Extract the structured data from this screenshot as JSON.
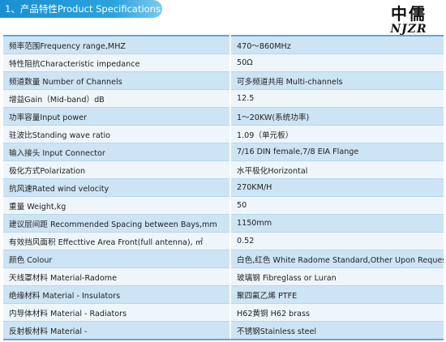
{
  "header": {
    "title": "1、产品特性Product Specifications"
  },
  "logo": {
    "cn": "中儒",
    "en": "NJZR"
  },
  "specs": [
    {
      "label": "频率范围Frequency range,MHZ",
      "value": "470～860MHz"
    },
    {
      "label": "特性阻抗Characteristic impedance",
      "value": "50Ω"
    },
    {
      "label": "频道数量 Number of Channels",
      "value": "可多频道共用 Multi-channels"
    },
    {
      "label": "增益Gain（Mid-band）dB",
      "value": "12.5"
    },
    {
      "label": "功率容量Input power",
      "value": "1～20KW(系统功率)"
    },
    {
      "label": "驻波比Standing wave ratio",
      "value": "1.09（单元板）"
    },
    {
      "label": "输入接头 Input Connector",
      "value": "7/16 DIN female,7/8 EIA Flange"
    },
    {
      "label": "极化方式Polarization",
      "value": "水平极化Horizontal"
    },
    {
      "label": "抗风速Rated wind velocity",
      "value": "270KM/H"
    },
    {
      "label": "重量 Weight,kg",
      "value": "50"
    },
    {
      "label": "建议层间距 Recommended Spacing between Bays,mm",
      "value": "1150mm"
    },
    {
      "label": "有效挡风面积 Effecttive Area Front(full antenna), ㎡",
      "value": "0.52"
    },
    {
      "label": "颜色 Colour",
      "value": "白色,红色 White Radome Standard,Other Upon Request"
    },
    {
      "label": "天线罩材料 Material-Radome",
      "value": "玻璃钢 Fibreglass or Luran"
    },
    {
      "label": "绝缘材料 Material - Insulators",
      "value": "聚四氟乙烯 PTFE"
    },
    {
      "label": "内导体材料 Material - Radiators",
      "value": "H62黄铜 H62 brass"
    },
    {
      "label": "反射板材料 Material -",
      "value": "不锈钢Stainless steel"
    }
  ]
}
